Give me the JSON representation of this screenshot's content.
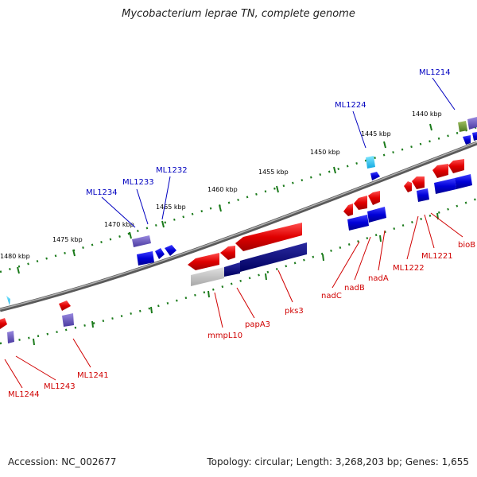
{
  "title": "Mycobacterium leprae TN, complete genome",
  "footer": {
    "accession": "Accession: NC_002677",
    "summary": "Topology: circular; Length: 3,268,203 bp; Genes: 1,655"
  },
  "colors": {
    "forward_gene": "#e00000",
    "reverse_gene": "#0000d8",
    "pseudo_gene": "#6a5acd",
    "backbone": "#7a7a7a",
    "tick": "#1a7a1a",
    "label_forward": "#d00000",
    "label_reverse": "#0000c0"
  },
  "scale_labels": [
    "1480 kbp",
    "1475 kbp",
    "1470 kbp",
    "1465 kbp",
    "1460 kbp",
    "1455 kbp",
    "1450 kbp",
    "1445 kbp",
    "1440 kbp"
  ],
  "gene_labels_reverse": [
    "ML1214",
    "ML1224",
    "ML1232",
    "ML1233",
    "ML1234"
  ],
  "gene_labels_forward": [
    "ML1241",
    "ML1243",
    "ML1244",
    "mmpL10",
    "papA3",
    "pks3",
    "nadC",
    "nadB",
    "nadA",
    "ML1222",
    "ML1221",
    "bioB"
  ]
}
